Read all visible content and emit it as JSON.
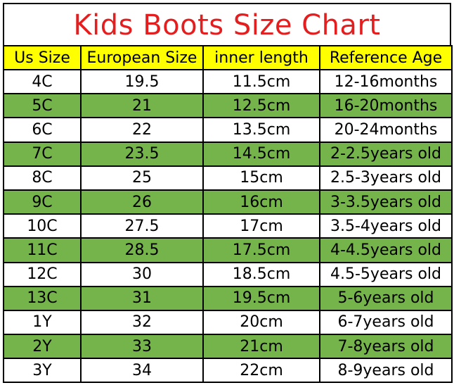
{
  "title": "Kids Boots Size Chart",
  "colors": {
    "title_text": "#e41e1e",
    "header_bg": "#ffff00",
    "stripe_green": "#75b34b",
    "stripe_white": "#ffffff"
  },
  "headers": [
    "Us Size",
    "European Size",
    "inner length",
    "Reference Age"
  ],
  "rows": [
    [
      "4C",
      "19.5",
      "11.5cm",
      "12-16months"
    ],
    [
      "5C",
      "21",
      "12.5cm",
      "16-20months"
    ],
    [
      "6C",
      "22",
      "13.5cm",
      "20-24months"
    ],
    [
      "7C",
      "23.5",
      "14.5cm",
      "2-2.5years old"
    ],
    [
      "8C",
      "25",
      "15cm",
      "2.5-3years old"
    ],
    [
      "9C",
      "26",
      "16cm",
      "3-3.5years old"
    ],
    [
      "10C",
      "27.5",
      "17cm",
      "3.5-4years old"
    ],
    [
      "11C",
      "28.5",
      "17.5cm",
      "4-4.5years old"
    ],
    [
      "12C",
      "30",
      "18.5cm",
      "4.5-5years old"
    ],
    [
      "13C",
      "31",
      "19.5cm",
      "5-6years old"
    ],
    [
      "1Y",
      "32",
      "20cm",
      "6-7years old"
    ],
    [
      "2Y",
      "33",
      "21cm",
      "7-8years old"
    ],
    [
      "3Y",
      "34",
      "22cm",
      "8-9years old"
    ]
  ]
}
